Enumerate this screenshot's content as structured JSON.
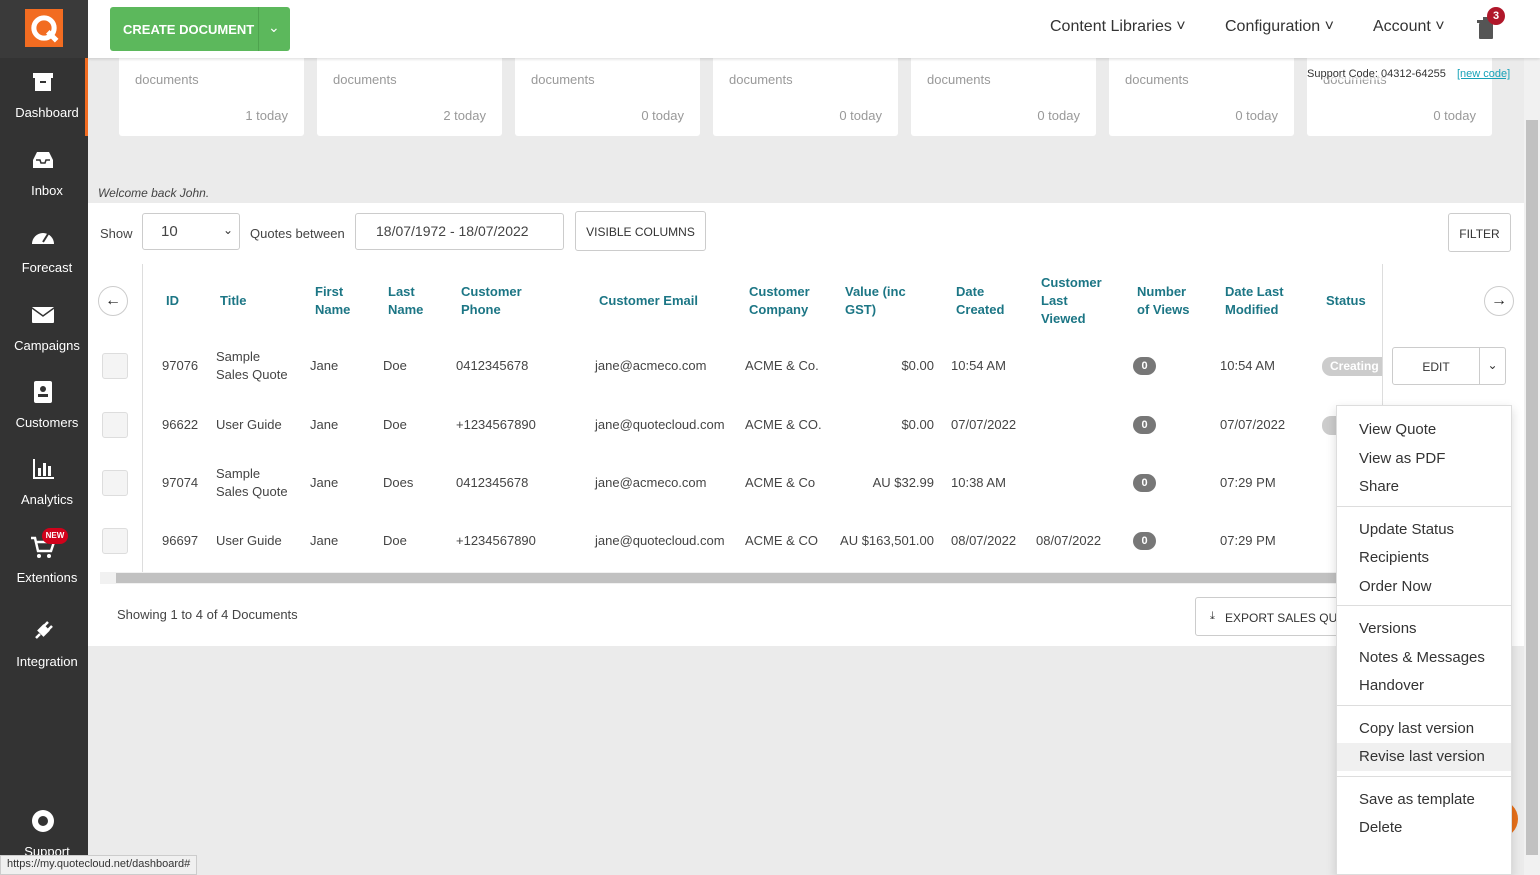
{
  "sidebar": {
    "items": [
      "Dashboard",
      "Inbox",
      "Forecast",
      "Campaigns",
      "Customers",
      "Analytics",
      "Extentions",
      "Integration",
      "Support"
    ],
    "badge": "NEW"
  },
  "topbar": {
    "create": "CREATE DOCUMENT",
    "nav": [
      "Content Libraries",
      "Configuration",
      "Account"
    ],
    "trash_count": "3"
  },
  "cards": [
    {
      "label": "documents",
      "today": "1 today"
    },
    {
      "label": "documents",
      "today": "2 today"
    },
    {
      "label": "documents",
      "today": "0 today"
    },
    {
      "label": "documents",
      "today": "0 today"
    },
    {
      "label": "documents",
      "today": "0 today"
    },
    {
      "label": "documents",
      "today": "0 today"
    },
    {
      "label": "documents",
      "today": "0 today"
    }
  ],
  "support": {
    "code": "Support Code: 04312-64255",
    "link": "[new code]"
  },
  "welcome": "Welcome back John.",
  "controls": {
    "show_label": "Show",
    "page_size": "10",
    "range_label": "Quotes between",
    "date_range": "18/07/1972 - 18/07/2022",
    "columns_button": "VISIBLE COLUMNS",
    "filter_button": "FILTER"
  },
  "table": {
    "headers": [
      "ID",
      "Title",
      "First Name",
      "Last Name",
      "Customer Phone",
      "Customer Email",
      "Customer Company",
      "Value (inc GST)",
      "Date Created",
      "Customer Last Viewed",
      "Number of Views",
      "Date Last Modified",
      "Status"
    ],
    "rows": [
      [
        "97076",
        "Sample Sales Quote",
        "Jane",
        "Doe",
        "0412345678",
        "jane@acmeco.com",
        "ACME & Co.",
        "$0.00",
        "10:54 AM",
        null,
        "0",
        "10:54 AM"
      ],
      [
        "96622",
        "User Guide",
        "Jane",
        "Doe",
        "+1234567890",
        "jane@quotecloud.com",
        "ACME & CO.",
        "$0.00",
        "07/07/2022",
        null,
        "0",
        "07/07/2022"
      ],
      [
        "97074",
        "Sample Sales Quote",
        "Jane",
        "Does",
        "0412345678",
        "jane@acmeco.com",
        "ACME & Co",
        "AU $32.99",
        "10:38 AM",
        null,
        "0",
        "07:29 PM"
      ],
      [
        "96697",
        "User Guide",
        "Jane",
        "Doe",
        "+1234567890",
        "jane@quotecloud.com",
        "ACME & CO",
        "AU $163,501.00",
        "08/07/2022",
        "08/07/2022",
        "0",
        "07:29 PM"
      ]
    ],
    "status": "Creating",
    "edit": "EDIT"
  },
  "footer": {
    "showing": "Showing 1 to 4 of 4 Documents",
    "export": "EXPORT SALES QUOTES"
  },
  "menu": {
    "groups": [
      [
        "View Quote",
        "View as PDF",
        "Share"
      ],
      [
        "Update Status",
        "Recipients",
        "Order Now"
      ],
      [
        "Versions",
        "Notes & Messages",
        "Handover"
      ],
      [
        "Copy last version",
        "Revise last version"
      ],
      [
        "Save as template",
        "Delete"
      ]
    ]
  },
  "status_url": "https://my.quotecloud.net/dashboard#"
}
